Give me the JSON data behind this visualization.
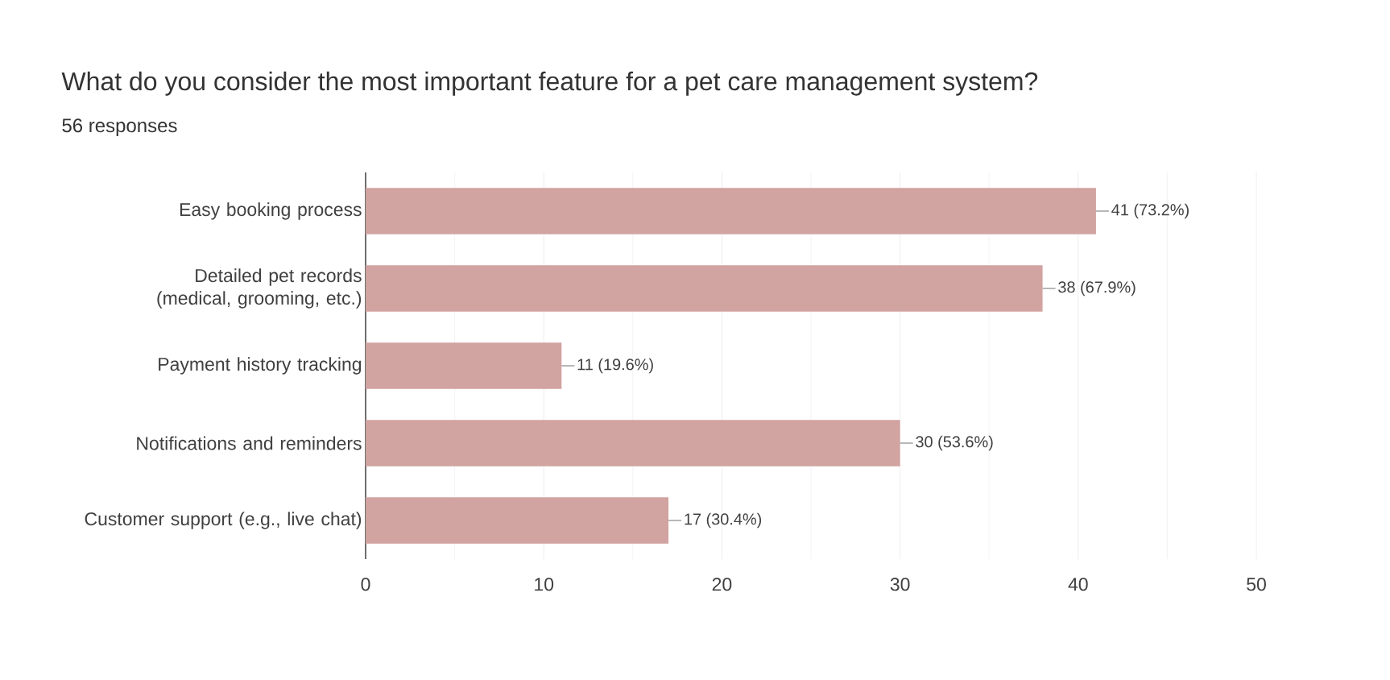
{
  "chart_data": {
    "type": "bar",
    "orientation": "horizontal",
    "title": "What do you consider the most important feature for a pet care management system?",
    "subtitle": "56 responses",
    "categories": [
      "Easy booking process",
      "Detailed pet records (medical, grooming, etc.)",
      "Payment history tracking",
      "Notifications and reminders",
      "Customer support (e.g., live chat)"
    ],
    "values": [
      41,
      38,
      11,
      30,
      17
    ],
    "value_labels": [
      "41 (73.2%)",
      "38 (67.9%)",
      "11 (19.6%)",
      "30 (53.6%)",
      "17 (30.4%)"
    ],
    "color": "#d1a3a1",
    "xlim": [
      0,
      50
    ],
    "xticks": [
      0,
      10,
      20,
      30,
      40,
      50
    ],
    "grid": "x"
  }
}
